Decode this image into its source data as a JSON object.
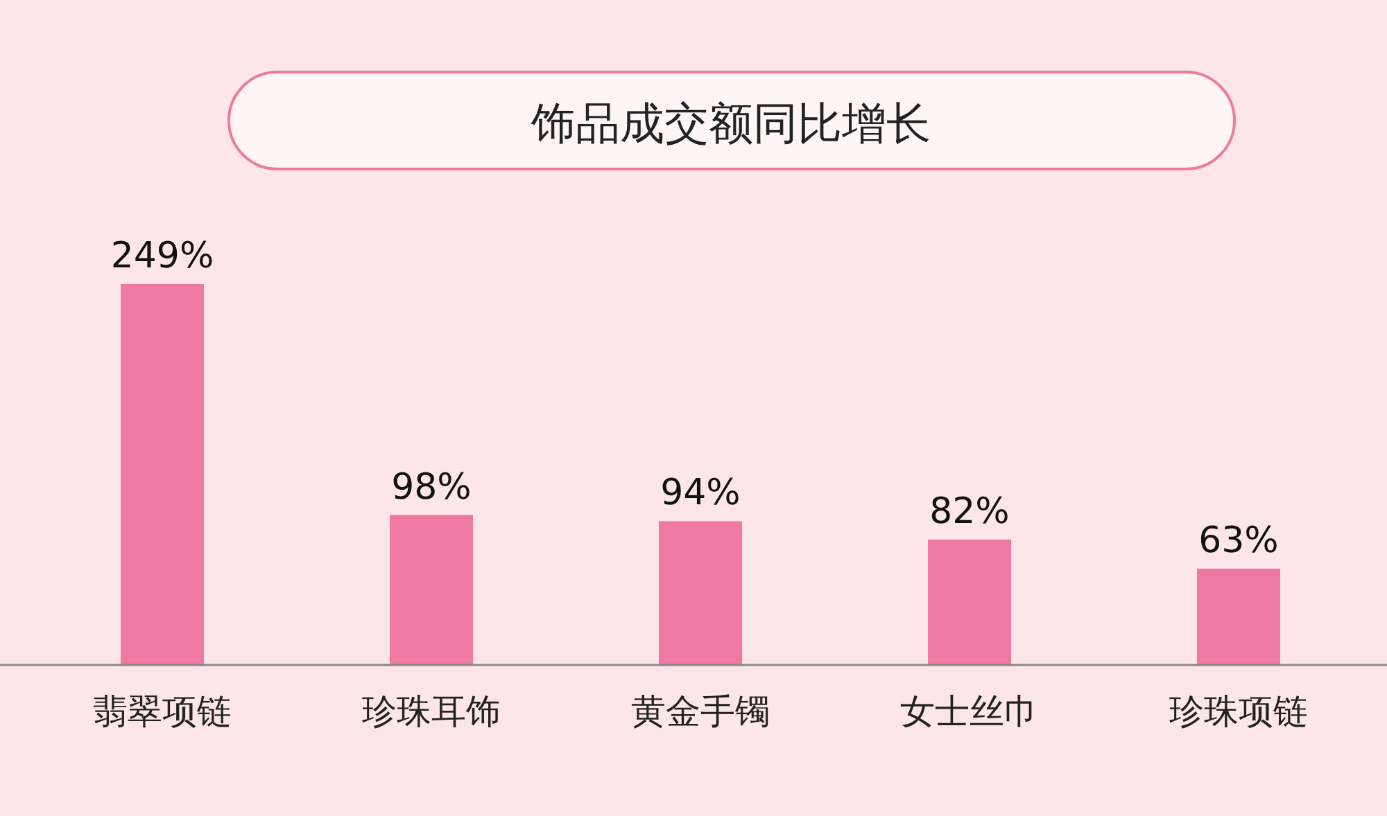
{
  "chart_data": {
    "type": "bar",
    "title": "饰品成交额同比增长",
    "categories": [
      "翡翠项链",
      "珍珠耳饰",
      "黄金手镯",
      "女士丝巾",
      "珍珠项链"
    ],
    "values": [
      249,
      98,
      94,
      82,
      63
    ],
    "value_labels": [
      "249%",
      "98%",
      "94%",
      "82%",
      "63%"
    ],
    "color": "#ef79a3"
  }
}
